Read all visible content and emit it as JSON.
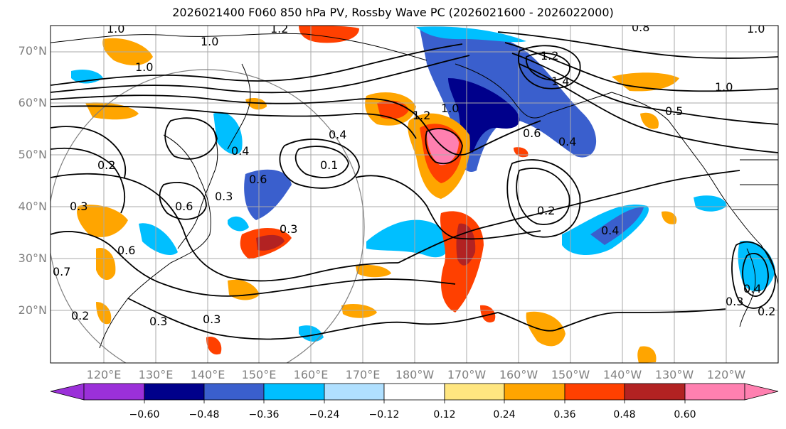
{
  "title": "2026021400 F060 850 hPa PV, Rossby Wave PC (2026021600 - 2026022000)",
  "latitude_labels": [
    "70°N",
    "60°N",
    "50°N",
    "40°N",
    "30°N",
    "20°N"
  ],
  "longitude_labels": [
    "120°E",
    "130°E",
    "140°E",
    "150°E",
    "160°E",
    "170°E",
    "180°W",
    "170°W",
    "160°W",
    "150°W",
    "140°W",
    "130°W",
    "120°W"
  ],
  "colorbar": {
    "tick_labels": [
      "−0.60",
      "−0.48",
      "−0.36",
      "−0.24",
      "−0.12",
      "0.12",
      "0.24",
      "0.36",
      "0.48",
      "0.60"
    ],
    "colors": [
      "#9b30d9",
      "#00008b",
      "#3a5fcd",
      "#00bfff",
      "#b0e0ff",
      "#ffffff",
      "#ffe680",
      "#ffa500",
      "#ff4000",
      "#b22222",
      "#ff80b0"
    ]
  },
  "contour_labels": [
    "1.0",
    "1.2",
    "1.0",
    "1.0",
    "0.8",
    "1.0",
    "1.2",
    "1.4",
    "1.0",
    "0.5",
    "0.4",
    "0.6",
    "0.4",
    "0.6",
    "0.4",
    "0.3",
    "0.2",
    "0.6",
    "0.3",
    "0.6",
    "0.2",
    "0.7",
    "0.3",
    "0.3",
    "0.3",
    "0.2",
    "0.4",
    "0.1",
    "1.2",
    "1.0",
    "0.2",
    "0.3",
    "0.4"
  ]
}
